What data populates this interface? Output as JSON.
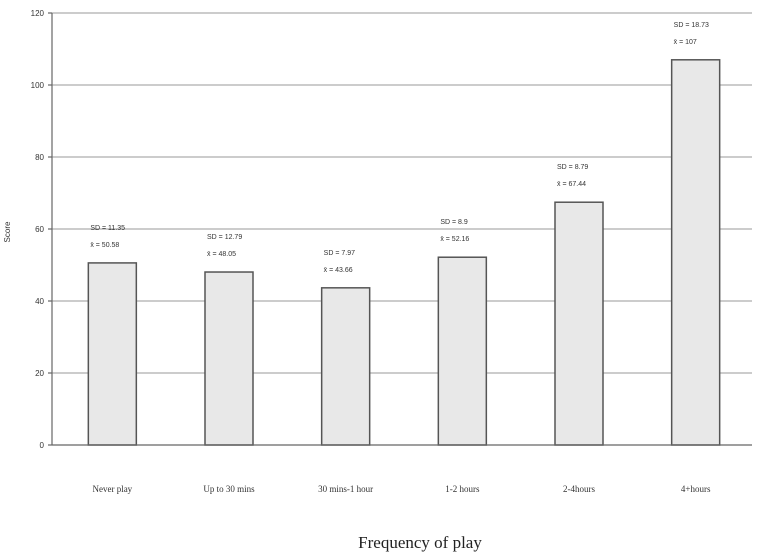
{
  "chart_data": {
    "type": "bar",
    "title": "",
    "xlabel": "Frequency of play",
    "ylabel": "Score",
    "ylim": [
      0,
      120
    ],
    "yticks": [
      0,
      20,
      40,
      60,
      80,
      100,
      120
    ],
    "grid": true,
    "categories": [
      "Never play",
      "Up to 30 mins",
      "30 mins-1 hour",
      "1-2 hours",
      "2-4hours",
      "4+hours"
    ],
    "values": [
      50.58,
      48.05,
      43.66,
      52.16,
      67.44,
      107
    ],
    "sd_labels": [
      "SD = 11.35",
      "SD = 12.79",
      "SD = 7.97",
      "SD = 8.9",
      "SD = 8.79",
      "SD = 18.73"
    ],
    "mean_labels": [
      "x̄ = 50.58",
      "x̄ = 48.05",
      "x̄ = 43.66",
      "x̄ = 52.16",
      "x̄ = 67.44",
      "x̄ = 107"
    ],
    "colors": {
      "bar_fill": "#e8e8e8",
      "bar_stroke": "#555555",
      "grid": "#9a9a9a"
    }
  }
}
